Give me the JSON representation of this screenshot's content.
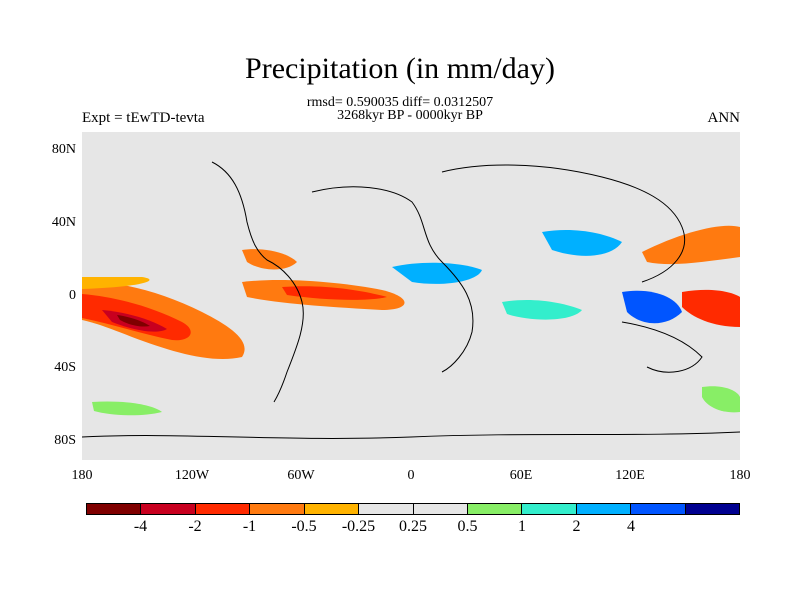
{
  "title": "Precipitation (in mm/day)",
  "stats": {
    "line1": "rmsd= 0.590035 diff= 0.0312507",
    "line2": "3268kyr BP - 0000kyr BP"
  },
  "experiment_label": "Expt = tEwTD-tevta",
  "season_label": "ANN",
  "lat_ticks": [
    "80N",
    "40N",
    "0",
    "40S",
    "80S"
  ],
  "lon_ticks": [
    "180",
    "120W",
    "60W",
    "0",
    "60E",
    "120E",
    "180"
  ],
  "colorbar": {
    "colors": [
      "#7f0000",
      "#c8001f",
      "#ff2a00",
      "#ff7a10",
      "#ffb300",
      "#e6e6e6",
      "#e6e6e6",
      "#88ee66",
      "#33eecc",
      "#00b0ff",
      "#0055ff",
      "#000090"
    ],
    "labels": [
      "-4",
      "-2",
      "-1",
      "-0.5",
      "-0.25",
      "0.25",
      "0.5",
      "1",
      "2",
      "4"
    ]
  },
  "colors": {
    "background": "#e6e6e6",
    "coast": "#000000"
  }
}
